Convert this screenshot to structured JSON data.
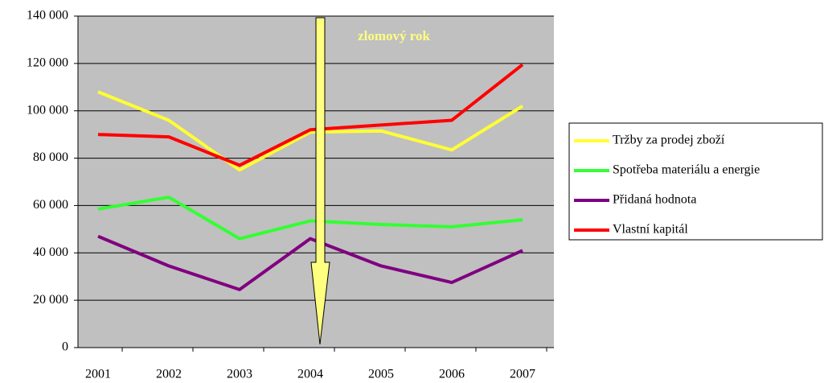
{
  "chart_data": {
    "type": "line",
    "annotation": "zlomový rok",
    "categories": [
      "2001",
      "2002",
      "2003",
      "2004",
      "2005",
      "2006",
      "2007"
    ],
    "series": [
      {
        "name": "Tržby za prodej zboží",
        "color": "#ffff33",
        "values": [
          108000,
          96000,
          75000,
          91000,
          91500,
          83500,
          102000
        ]
      },
      {
        "name": "Spotřeba materiálu a energie",
        "color": "#33ff33",
        "values": [
          58500,
          63500,
          46000,
          53500,
          52000,
          51000,
          54000
        ]
      },
      {
        "name": "Přidaná hodnota",
        "color": "#800080",
        "values": [
          47000,
          34500,
          24500,
          46000,
          34500,
          27500,
          41000
        ]
      },
      {
        "name": "Vlastní kapitál",
        "color": "#ff0000",
        "values": [
          90000,
          89000,
          77000,
          92000,
          94000,
          96000,
          119500
        ]
      }
    ],
    "ylim": [
      0,
      140000
    ],
    "yticks": [
      0,
      {
        "value": 20000,
        "label": "20 000"
      },
      {
        "value": 40000,
        "label": "40 000"
      },
      {
        "value": 60000,
        "label": "60 000"
      },
      {
        "value": 80000,
        "label": "80 000"
      },
      {
        "value": 100000,
        "label": "100 000"
      },
      {
        "value": 120000,
        "label": "120 000"
      },
      {
        "value": 140000,
        "label": "140 000"
      }
    ],
    "grid": true,
    "legend": "right"
  }
}
